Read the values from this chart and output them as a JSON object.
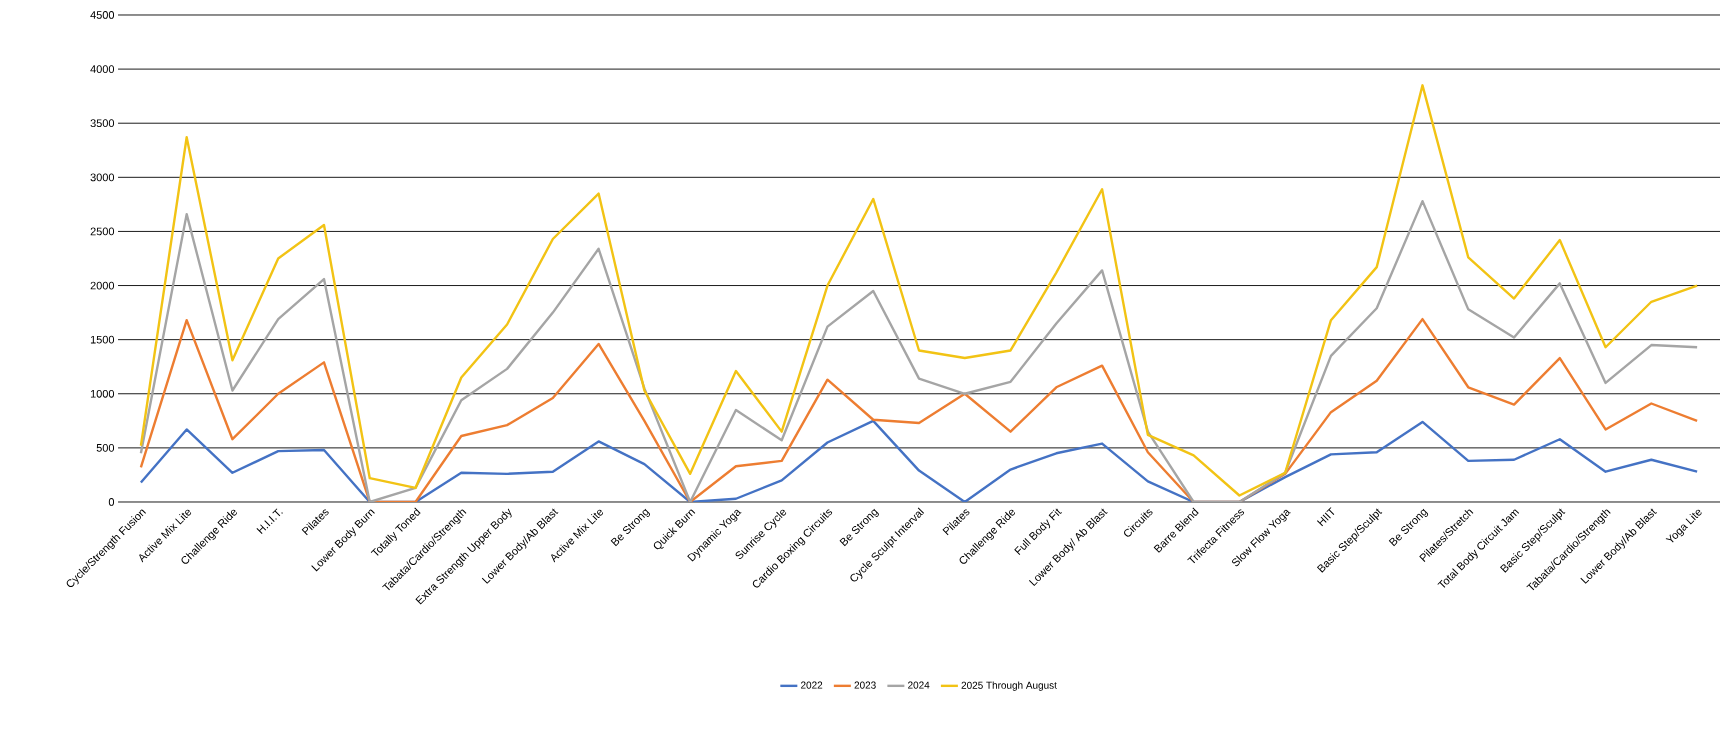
{
  "chart_data": {
    "type": "line",
    "categories": [
      "Cycle/Strength Fusion",
      "Active Mix Lite",
      "Challenge Ride",
      "H.I.I.T.",
      "Pilates",
      "Lower Body Burn",
      "Totally Toned",
      "Tabata/Cardio/Strength",
      "Extra Strength Upper Body",
      "Lower Body/Ab Blast",
      "Active Mix Lite",
      "Be Strong",
      "Quick Burn",
      "Dynamic Yoga",
      "Sunrise Cycle",
      "Cardio Boxing Circuits",
      "Be Strong",
      "Cycle Sculpt Interval",
      "Pilates",
      "Challenge Ride",
      "Full Body Fit",
      "Lower Body/ Ab Blast",
      "Circuits",
      "Barre Blend",
      "Trifecta Fitness",
      "Slow Flow Yoga",
      "HIIT",
      "Basic Step/Sculpt",
      "Be Strong",
      "Pilates/Stretch",
      "Total Body Circuit Jam",
      "Basic Step/Sculpt",
      "Tabata/Cardio/Strength",
      "Lower Body/Ab Blast",
      "Yoga Lite"
    ],
    "series": [
      {
        "name": "2022",
        "color": "#4472c4",
        "values": [
          180,
          670,
          270,
          470,
          480,
          0,
          0,
          270,
          260,
          280,
          560,
          350,
          0,
          30,
          200,
          550,
          750,
          290,
          0,
          300,
          450,
          540,
          190,
          0,
          0,
          230,
          440,
          460,
          740,
          380,
          390,
          580,
          280,
          390,
          280
        ]
      },
      {
        "name": "2023",
        "color": "#ed7d31",
        "values": [
          320,
          1680,
          580,
          1000,
          1290,
          0,
          0,
          610,
          710,
          960,
          1460,
          750,
          0,
          330,
          380,
          1130,
          760,
          730,
          1000,
          650,
          1060,
          1260,
          460,
          0,
          0,
          260,
          830,
          1120,
          1690,
          1060,
          900,
          1330,
          670,
          910,
          750
        ]
      },
      {
        "name": "2024",
        "color": "#a5a5a5",
        "values": [
          450,
          2660,
          1030,
          1690,
          2060,
          0,
          130,
          940,
          1230,
          1750,
          2340,
          1050,
          0,
          850,
          570,
          1620,
          1950,
          1140,
          1000,
          1110,
          1650,
          2140,
          650,
          0,
          0,
          270,
          1350,
          1790,
          2780,
          1780,
          1520,
          2020,
          1100,
          1450,
          1430
        ]
      },
      {
        "name": "2025 Through August",
        "color": "#f2c314",
        "values": [
          520,
          3370,
          1310,
          2250,
          2560,
          220,
          130,
          1150,
          1640,
          2430,
          2850,
          1030,
          260,
          1210,
          650,
          2000,
          2800,
          1400,
          1330,
          1400,
          2120,
          2890,
          620,
          430,
          60,
          270,
          1680,
          2170,
          3850,
          2260,
          1880,
          2420,
          1430,
          1850,
          2000
        ]
      }
    ],
    "ylim": [
      0,
      4500
    ],
    "yticks": [
      0,
      500,
      1000,
      1500,
      2000,
      2500,
      3000,
      3500,
      4000,
      4500
    ],
    "grid": "y",
    "legend": "bottom",
    "marker": "none",
    "line_style": "solid"
  }
}
